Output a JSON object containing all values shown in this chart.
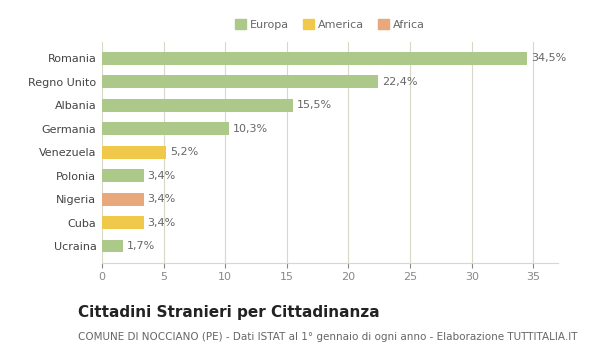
{
  "categories": [
    "Ucraina",
    "Cuba",
    "Nigeria",
    "Polonia",
    "Venezuela",
    "Germania",
    "Albania",
    "Regno Unito",
    "Romania"
  ],
  "values": [
    1.7,
    3.4,
    3.4,
    3.4,
    5.2,
    10.3,
    15.5,
    22.4,
    34.5
  ],
  "labels": [
    "1,7%",
    "3,4%",
    "3,4%",
    "3,4%",
    "5,2%",
    "10,3%",
    "15,5%",
    "22,4%",
    "34,5%"
  ],
  "colors": [
    "#adc98a",
    "#f0c84a",
    "#e8a87c",
    "#adc98a",
    "#f0c84a",
    "#adc98a",
    "#adc98a",
    "#adc98a",
    "#adc98a"
  ],
  "legend_labels": [
    "Europa",
    "America",
    "Africa"
  ],
  "legend_colors": [
    "#adc98a",
    "#f0c84a",
    "#e8a87c"
  ],
  "title": "Cittadini Stranieri per Cittadinanza",
  "subtitle": "COMUNE DI NOCCIANO (PE) - Dati ISTAT al 1° gennaio di ogni anno - Elaborazione TUTTITALIA.IT",
  "xlim": [
    0,
    37
  ],
  "xticks": [
    0,
    5,
    10,
    15,
    20,
    25,
    30,
    35
  ],
  "background_color": "#ffffff",
  "grid_color": "#d8d8c8",
  "bar_height": 0.55,
  "title_fontsize": 11,
  "subtitle_fontsize": 7.5,
  "tick_fontsize": 8,
  "label_fontsize": 8
}
